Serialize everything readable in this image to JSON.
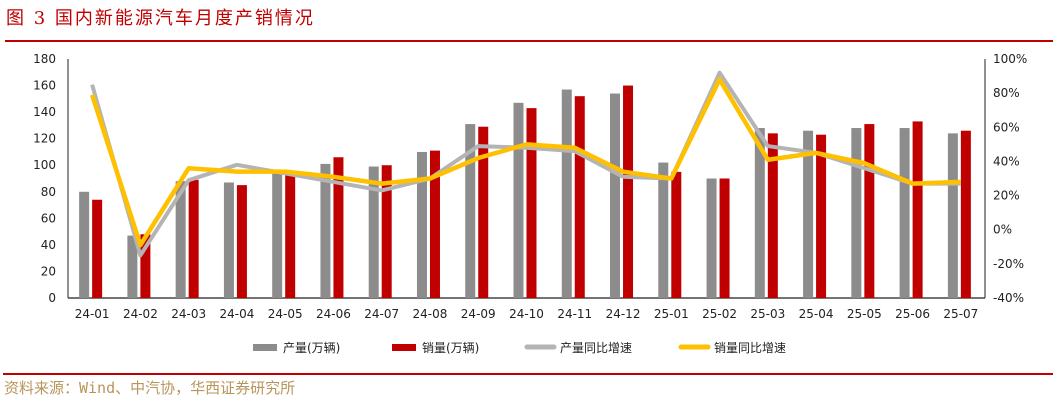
{
  "title": "图 3 国内新能源汽车月度产销情况",
  "source": "资料来源：Wind、中汽协，华西证券研究所",
  "chart_data": {
    "type": "bar+line",
    "categories": [
      "24-01",
      "24-02",
      "24-03",
      "24-04",
      "24-05",
      "24-06",
      "24-07",
      "24-08",
      "24-09",
      "24-10",
      "24-11",
      "24-12",
      "25-01",
      "25-02",
      "25-03",
      "25-04",
      "25-05",
      "25-06",
      "25-07"
    ],
    "y_left": {
      "range": [
        0,
        180
      ],
      "ticks": [
        "0",
        "20",
        "40",
        "60",
        "80",
        "100",
        "120",
        "140",
        "160",
        "180"
      ]
    },
    "y_right": {
      "range": [
        -40,
        100
      ],
      "ticks": [
        "-40%",
        "-20%",
        "0%",
        "20%",
        "40%",
        "60%",
        "80%",
        "100%"
      ]
    },
    "grid": false,
    "legend_position": "bottom",
    "series": [
      {
        "name": "产量(万辆)",
        "type": "bar",
        "axis": "left",
        "color": "#8c8c8c",
        "values": [
          80,
          47,
          88,
          87,
          94,
          101,
          99,
          110,
          131,
          147,
          157,
          154,
          102,
          90,
          128,
          126,
          128,
          128,
          124
        ]
      },
      {
        "name": "销量(万辆)",
        "type": "bar",
        "axis": "left",
        "color": "#c00000",
        "values": [
          74,
          48,
          89,
          85,
          96,
          106,
          100,
          111,
          129,
          143,
          152,
          160,
          95,
          90,
          124,
          123,
          131,
          133,
          126
        ]
      },
      {
        "name": "产量同比增速",
        "type": "line",
        "axis": "right",
        "color": "#b4b4b4",
        "values": [
          85,
          -15,
          29,
          38,
          33,
          28,
          23,
          30,
          49,
          48,
          46,
          31,
          30,
          92,
          49,
          45,
          36,
          27,
          27
        ]
      },
      {
        "name": "销量同比增速",
        "type": "line",
        "axis": "right",
        "color": "#ffc000",
        "values": [
          79,
          -9,
          36,
          34,
          34,
          31,
          27,
          30,
          42,
          50,
          48,
          34,
          30,
          88,
          41,
          45,
          39,
          27,
          28
        ]
      }
    ]
  }
}
